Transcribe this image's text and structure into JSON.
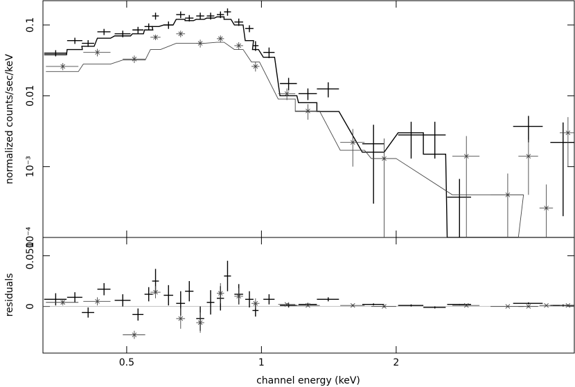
{
  "chart_data": [
    {
      "type": "scatter",
      "ylabel": "normalized counts/sec/keV",
      "log_x": true,
      "log_y": true,
      "xlim": [
        0.325,
        5
      ],
      "ylim": [
        0.0001,
        0.22
      ],
      "yticks": [
        0.1,
        0.01,
        {
          "value": 0.001,
          "label": "10⁻³"
        },
        {
          "value": 0.0001,
          "label": "10⁻⁴"
        }
      ],
      "series": [
        {
          "color": "#000000",
          "marker": "plus",
          "x": [
            0.347,
            0.383,
            0.41,
            0.445,
            0.49,
            0.53,
            0.56,
            0.58,
            0.62,
            0.66,
            0.69,
            0.73,
            0.77,
            0.81,
            0.84,
            0.89,
            0.94,
            0.97,
            1.04,
            1.15,
            1.27,
            1.41,
            1.78,
            2.16,
            2.44,
            2.77,
            3.95,
            4.72
          ],
          "xerr": [
            0.02,
            0.015,
            0.013,
            0.015,
            0.02,
            0.015,
            0.012,
            0.01,
            0.015,
            0.015,
            0.015,
            0.015,
            0.015,
            0.015,
            0.015,
            0.02,
            0.02,
            0.015,
            0.03,
            0.05,
            0.06,
            0.08,
            0.1,
            0.14,
            0.14,
            0.17,
            0.3,
            0.3
          ],
          "values": [
            0.04,
            0.06,
            0.055,
            0.08,
            0.075,
            0.085,
            0.095,
            0.134,
            0.1,
            0.14,
            0.125,
            0.134,
            0.134,
            0.14,
            0.153,
            0.11,
            0.089,
            0.051,
            0.041,
            0.0149,
            0.0107,
            0.0125,
            0.0021,
            0.0028,
            0.0028,
            0.00037,
            0.0037,
            0.0022
          ],
          "yerr": [
            0.004,
            0.006,
            0.006,
            0.008,
            0.008,
            0.009,
            0.01,
            0.015,
            0.012,
            0.015,
            0.013,
            0.015,
            0.015,
            0.015,
            0.018,
            0.013,
            0.01,
            0.008,
            0.007,
            0.003,
            0.002,
            0.003,
            0.0018,
            0.0015,
            0.0015,
            0.0003,
            0.0015,
            0.002
          ],
          "model": [
            0.038,
            0.045,
            0.05,
            0.065,
            0.07,
            0.075,
            0.085,
            0.095,
            0.1,
            0.12,
            0.115,
            0.12,
            0.125,
            0.13,
            0.12,
            0.1,
            0.06,
            0.045,
            0.035,
            0.01,
            0.008,
            0.006,
            0.0016,
            0.003,
            0.0015,
            0.0001,
            0.0001,
            0.0001
          ]
        },
        {
          "color": "#444444",
          "marker": "star",
          "x": [
            0.36,
            0.43,
            0.52,
            0.58,
            0.66,
            0.73,
            0.81,
            0.89,
            0.97,
            1.14,
            1.27,
            1.6,
            1.88,
            2.87,
            3.55,
            3.95,
            4.33,
            4.84
          ],
          "xerr": [
            0.03,
            0.03,
            0.03,
            0.015,
            0.015,
            0.015,
            0.015,
            0.02,
            0.02,
            0.05,
            0.08,
            0.1,
            0.12,
            0.2,
            0.3,
            0.2,
            0.15,
            0.2
          ],
          "values": [
            0.026,
            0.041,
            0.033,
            0.067,
            0.075,
            0.055,
            0.064,
            0.051,
            0.026,
            0.0107,
            0.0061,
            0.0022,
            0.0013,
            0.0014,
            0.0004,
            0.0014,
            0.00026,
            0.003
          ],
          "yerr": [
            0.003,
            0.005,
            0.004,
            0.006,
            0.008,
            0.007,
            0.007,
            0.006,
            0.004,
            0.002,
            0.0015,
            0.0012,
            0.0012,
            0.0013,
            0.0004,
            0.001,
            0.0003,
            0.002
          ],
          "model": [
            0.022,
            0.028,
            0.032,
            0.045,
            0.055,
            0.055,
            0.057,
            0.045,
            0.03,
            0.009,
            0.006,
            0.0017,
            0.0013,
            0.0004,
            0.0004,
            0.0001,
            0.0001,
            0.0001
          ]
        }
      ]
    },
    {
      "type": "scatter",
      "xlabel": "channel energy (keV)",
      "ylabel": "residuals",
      "log_x": true,
      "xlim": [
        0.325,
        5
      ],
      "xticks": [
        0.5,
        1,
        2
      ],
      "ylim": [
        -0.046,
        0.068
      ],
      "yticks": [
        0,
        {
          "value": 0.05,
          "label": "0.050"
        }
      ],
      "series": [
        {
          "color": "#000000",
          "marker": "plus",
          "x": [
            0.347,
            0.383,
            0.41,
            0.445,
            0.49,
            0.53,
            0.56,
            0.58,
            0.62,
            0.66,
            0.69,
            0.73,
            0.77,
            0.81,
            0.84,
            0.89,
            0.94,
            0.97,
            1.04,
            1.15,
            1.27,
            1.41,
            1.78,
            2.16,
            2.44,
            2.77,
            3.95,
            4.72
          ],
          "xerr": [
            0.02,
            0.015,
            0.013,
            0.015,
            0.02,
            0.015,
            0.012,
            0.01,
            0.015,
            0.015,
            0.015,
            0.015,
            0.015,
            0.015,
            0.015,
            0.02,
            0.02,
            0.015,
            0.03,
            0.05,
            0.06,
            0.08,
            0.1,
            0.14,
            0.14,
            0.17,
            0.3,
            0.3
          ],
          "values": [
            0.007,
            0.009,
            -0.006,
            0.017,
            0.006,
            -0.008,
            0.012,
            0.025,
            0.011,
            0.003,
            0.015,
            -0.012,
            0.004,
            0.008,
            0.03,
            0.012,
            0.007,
            -0.004,
            0.007,
            0.001,
            0.002,
            0.007,
            0.002,
            0.001,
            -0.001,
            0.002,
            0.003,
            0.001
          ],
          "yerr": [
            0.006,
            0.005,
            0.005,
            0.006,
            0.006,
            0.006,
            0.007,
            0.012,
            0.01,
            0.012,
            0.01,
            0.012,
            0.012,
            0.012,
            0.015,
            0.01,
            0.008,
            0.006,
            0.005,
            0.002,
            0.0015,
            0.002,
            0.001,
            0.001,
            0.001,
            0.0005,
            0.001,
            0.001
          ]
        },
        {
          "color": "#444444",
          "marker": "star",
          "x": [
            0.36,
            0.43,
            0.52,
            0.58,
            0.66,
            0.73,
            0.81,
            0.89,
            0.97,
            1.14,
            1.27,
            1.6,
            1.88,
            2.87,
            3.55,
            3.95,
            4.33,
            4.84
          ],
          "xerr": [
            0.03,
            0.03,
            0.03,
            0.015,
            0.015,
            0.015,
            0.015,
            0.02,
            0.02,
            0.05,
            0.08,
            0.1,
            0.12,
            0.2,
            0.3,
            0.2,
            0.15,
            0.2
          ],
          "values": [
            0.004,
            0.005,
            -0.028,
            0.014,
            -0.012,
            -0.016,
            0.013,
            0.01,
            0.003,
            0.002,
            0.001,
            0.001,
            0,
            0.001,
            0,
            0,
            0.001,
            0.001
          ],
          "yerr": [
            0.003,
            0.004,
            0.004,
            0.006,
            0.01,
            0.01,
            0.01,
            0.008,
            0.005,
            0.001,
            0.001,
            0.001,
            0.001,
            0.001,
            0.0005,
            0.001,
            0.0005,
            0.001
          ]
        }
      ]
    }
  ]
}
